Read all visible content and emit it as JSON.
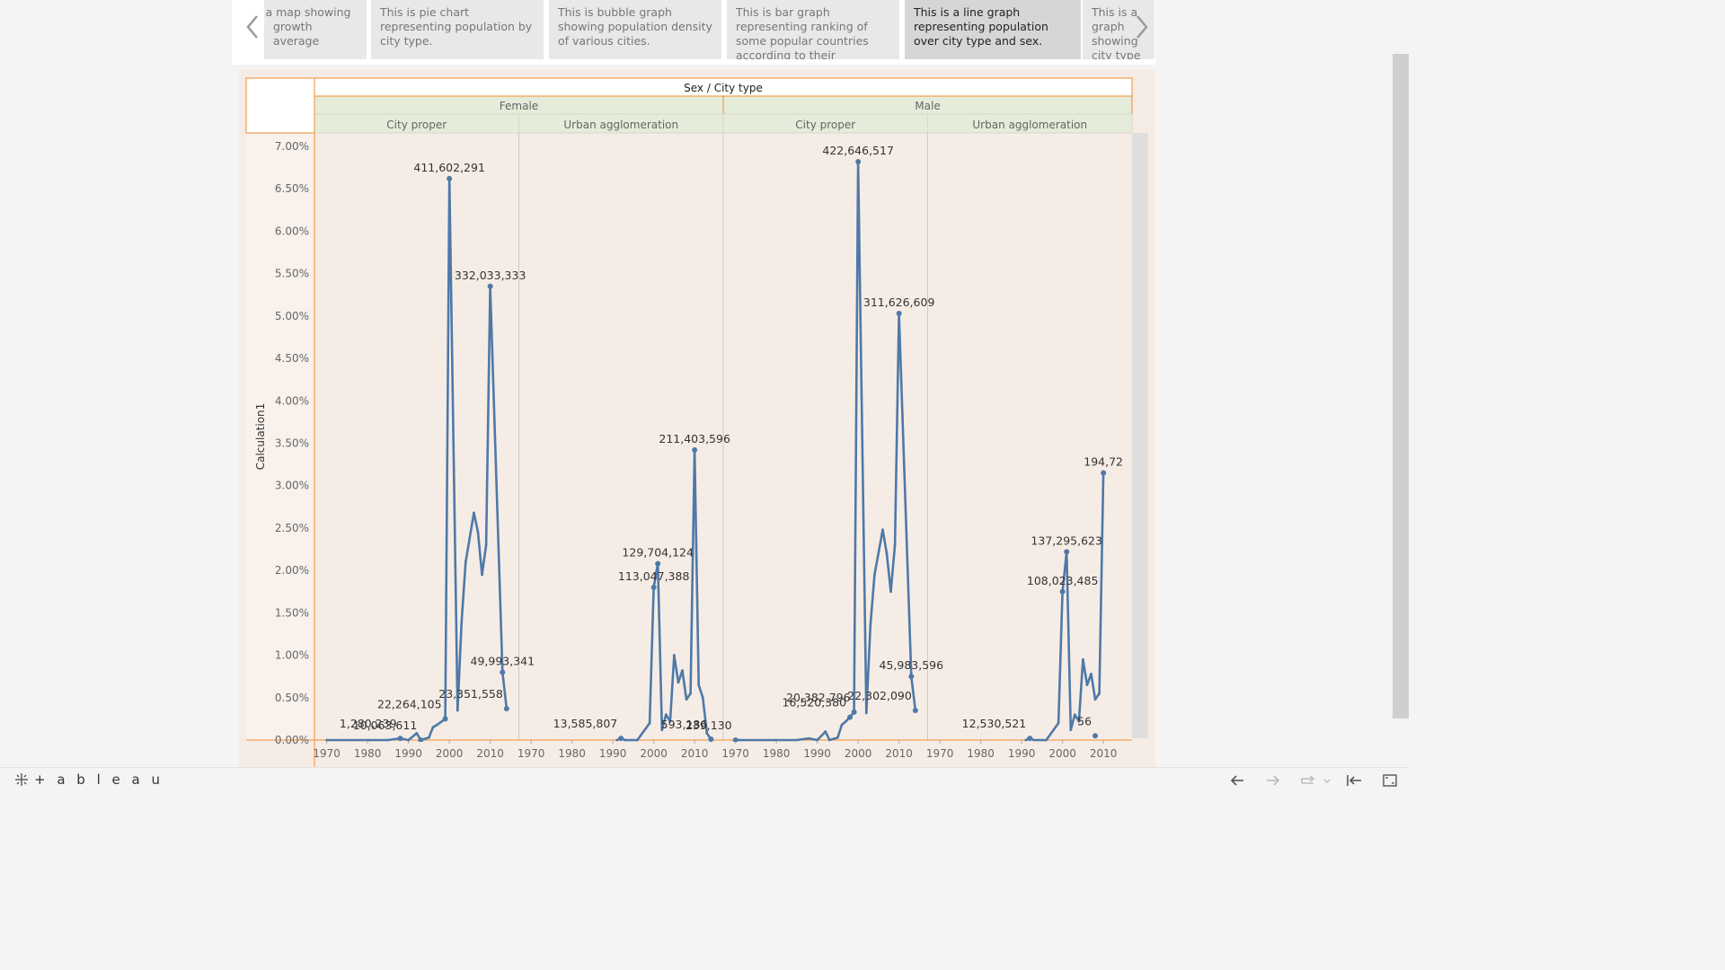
{
  "story_points": [
    {
      "text": "This is a map showing growth average",
      "active": false
    },
    {
      "text": "This is pie chart representing population by city type.",
      "active": false
    },
    {
      "text": "This is bubble graph showing population density of various cities.",
      "active": false
    },
    {
      "text": "This is bar graph representing ranking of some popular countries according to their",
      "active": false
    },
    {
      "text": "This is a line graph representing population over city type and sex.",
      "active": true
    },
    {
      "text": "This is a graph showing city type and",
      "active": false
    }
  ],
  "chart_data": {
    "type": "line",
    "header_title": "Sex / City type",
    "ylabel": "Calculation1",
    "ylim": [
      0,
      7
    ],
    "y_ticks": [
      "0.00%",
      "0.50%",
      "1.00%",
      "1.50%",
      "2.00%",
      "2.50%",
      "3.00%",
      "3.50%",
      "4.00%",
      "4.50%",
      "5.00%",
      "5.50%",
      "6.00%",
      "6.50%",
      "7.00%"
    ],
    "x_ticks": [
      "1970",
      "1980",
      "1990",
      "2000",
      "2010"
    ],
    "sexes": [
      "Female",
      "Male"
    ],
    "city_types": [
      "City proper",
      "Urban agglomeration"
    ],
    "panels": [
      {
        "sex": "Female",
        "city_type": "City proper",
        "points": [
          [
            1970,
            0
          ],
          [
            1985,
            0
          ],
          [
            1988,
            0.02
          ],
          [
            1990,
            0
          ],
          [
            1992,
            0.08
          ],
          [
            1993,
            0
          ],
          [
            1995,
            0.03
          ],
          [
            1996,
            0.15
          ],
          [
            1997,
            0.18
          ],
          [
            1999,
            0.25
          ],
          [
            2000,
            6.62
          ],
          [
            2002,
            0.35
          ],
          [
            2003,
            1.4
          ],
          [
            2004,
            2.1
          ],
          [
            2006,
            2.68
          ],
          [
            2007,
            2.45
          ],
          [
            2008,
            1.95
          ],
          [
            2009,
            2.3
          ],
          [
            2010,
            5.35
          ],
          [
            2013,
            0.8
          ],
          [
            2014,
            0.37
          ]
        ],
        "labels": [
          {
            "x": 1988,
            "y": 0.02,
            "text": "1,280,239"
          },
          {
            "x": 1999,
            "y": 0.25,
            "text": "22,264,105"
          },
          {
            "x": 1993,
            "y": 0,
            "text": "10,063,611"
          },
          {
            "x": 2000,
            "y": 6.62,
            "text": "411,602,291"
          },
          {
            "x": 2010,
            "y": 5.35,
            "text": "332,033,333"
          },
          {
            "x": 2013,
            "y": 0.8,
            "text": "49,993,341"
          },
          {
            "x": 2014,
            "y": 0.37,
            "text": "23,351,558"
          }
        ]
      },
      {
        "sex": "Female",
        "city_type": "Urban agglomeration",
        "points": [
          [
            1991,
            0
          ],
          [
            1992,
            0.02
          ],
          [
            1993,
            0
          ],
          [
            1996,
            0
          ],
          [
            1999,
            0.2
          ],
          [
            2000,
            1.8
          ],
          [
            2001,
            2.08
          ],
          [
            2002,
            0.12
          ],
          [
            2003,
            0.3
          ],
          [
            2004,
            0.22
          ],
          [
            2005,
            1.0
          ],
          [
            2006,
            0.68
          ],
          [
            2007,
            0.82
          ],
          [
            2008,
            0.48
          ],
          [
            2009,
            0.55
          ],
          [
            2010,
            3.42
          ],
          [
            2011,
            0.65
          ],
          [
            2012,
            0.5
          ],
          [
            2013,
            0.08
          ],
          [
            2014,
            0.01
          ]
        ],
        "labels": [
          {
            "x": 1992,
            "y": 0.02,
            "text": "13,585,807"
          },
          {
            "x": 2000,
            "y": 1.8,
            "text": "113,047,388"
          },
          {
            "x": 2001,
            "y": 2.08,
            "text": "129,704,124"
          },
          {
            "x": 2010,
            "y": 3.42,
            "text": "211,403,596"
          },
          {
            "x": 2014,
            "y": 0.01,
            "text": "593,186"
          }
        ]
      },
      {
        "sex": "Male",
        "city_type": "City proper",
        "points": [
          [
            1970,
            0
          ],
          [
            1985,
            0
          ],
          [
            1988,
            0.02
          ],
          [
            1990,
            0
          ],
          [
            1992,
            0.1
          ],
          [
            1993,
            0
          ],
          [
            1995,
            0.03
          ],
          [
            1996,
            0.18
          ],
          [
            1997,
            0.22
          ],
          [
            1998,
            0.27
          ],
          [
            1999,
            0.33
          ],
          [
            2000,
            6.82
          ],
          [
            2002,
            0.32
          ],
          [
            2003,
            1.35
          ],
          [
            2004,
            1.95
          ],
          [
            2006,
            2.48
          ],
          [
            2007,
            2.2
          ],
          [
            2008,
            1.75
          ],
          [
            2009,
            2.3
          ],
          [
            2010,
            5.03
          ],
          [
            2013,
            0.75
          ],
          [
            2014,
            0.35
          ]
        ],
        "labels": [
          {
            "x": 1970,
            "y": 0,
            "text": "239,130"
          },
          {
            "x": 1998,
            "y": 0.27,
            "text": "16,520,380"
          },
          {
            "x": 1999,
            "y": 0.33,
            "text": "20,382,796"
          },
          {
            "x": 2000,
            "y": 6.82,
            "text": "422,646,517"
          },
          {
            "x": 2010,
            "y": 5.03,
            "text": "311,626,609"
          },
          {
            "x": 2013,
            "y": 0.75,
            "text": "45,983,596"
          },
          {
            "x": 2014,
            "y": 0.35,
            "text": "22,302,090"
          }
        ]
      },
      {
        "sex": "Male",
        "city_type": "Urban agglomeration",
        "points": [
          [
            1991,
            0
          ],
          [
            1992,
            0.02
          ],
          [
            1993,
            0
          ],
          [
            1996,
            0
          ],
          [
            1999,
            0.2
          ],
          [
            2000,
            1.75
          ],
          [
            2001,
            2.22
          ],
          [
            2002,
            0.12
          ],
          [
            2003,
            0.3
          ],
          [
            2004,
            0.22
          ],
          [
            2005,
            0.95
          ],
          [
            2006,
            0.65
          ],
          [
            2007,
            0.78
          ],
          [
            2008,
            0.48
          ],
          [
            2009,
            0.55
          ],
          [
            2010,
            3.15
          ]
        ],
        "labels": [
          {
            "x": 1992,
            "y": 0.02,
            "text": "12,530,521"
          },
          {
            "x": 2000,
            "y": 1.75,
            "text": "108,023,485"
          },
          {
            "x": 2001,
            "y": 2.22,
            "text": "137,295,623"
          },
          {
            "x": 2010,
            "y": 3.15,
            "text": "194,72"
          },
          {
            "x": 2008,
            "y": 0.05,
            "text": "56"
          }
        ]
      }
    ]
  },
  "footer": {
    "logo_text": "+ a b l e a u",
    "buttons": [
      "undo-icon",
      "redo-icon",
      "revert-icon",
      "first-page-icon",
      "fullscreen-icon"
    ]
  },
  "colors": {
    "line": "#4e79a7",
    "panel_bg": "#f6ece6",
    "header_bg": "#e5ecd9",
    "accent_border": "#f28e2b"
  }
}
